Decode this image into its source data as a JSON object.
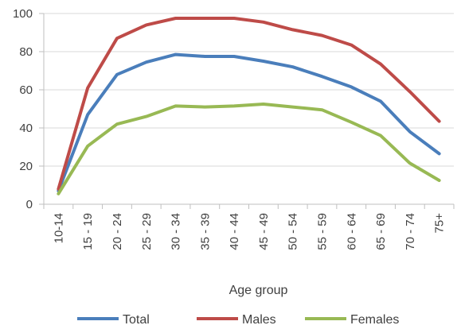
{
  "chart_data": {
    "type": "line",
    "title": "",
    "xlabel": "Age group",
    "ylabel": "",
    "ylim": [
      0,
      100
    ],
    "yticks": [
      0,
      20,
      40,
      60,
      80,
      100
    ],
    "grid": true,
    "legend_position": "bottom",
    "categories": [
      "10-14",
      "15 - 19",
      "20 - 24",
      "25 - 29",
      "30 - 34",
      "35 - 39",
      "40 - 44",
      "45 - 49",
      "50 - 54",
      "55 - 59",
      "60 - 64",
      "65 - 69",
      "70 - 74",
      "75+"
    ],
    "series": [
      {
        "name": "Total",
        "color": "#4A7EBB",
        "values": [
          7,
          47,
          68,
          74.5,
          78.5,
          77.5,
          77.5,
          75,
          72,
          67,
          61.5,
          54,
          38,
          26.5
        ]
      },
      {
        "name": "Males",
        "color": "#BE4B48",
        "values": [
          8,
          61,
          87,
          94,
          97.5,
          97.5,
          97.5,
          95.5,
          91.5,
          88.5,
          83.5,
          73.5,
          59,
          43.5
        ]
      },
      {
        "name": "Females",
        "color": "#98B954",
        "values": [
          5.5,
          30.5,
          42,
          46,
          51.5,
          51,
          51.5,
          52.5,
          51,
          49.5,
          43,
          36,
          21.5,
          12.5
        ]
      }
    ]
  }
}
